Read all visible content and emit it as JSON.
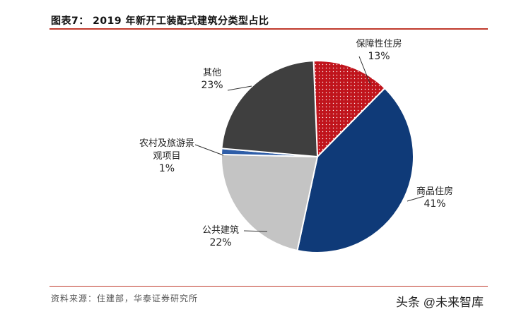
{
  "header": {
    "title": "图表7：  2019 年新开工装配式建筑分类型占比"
  },
  "footer": {
    "source": "资料来源：住建部，华泰证券研究所",
    "watermark": "头条 @未来智库"
  },
  "colors": {
    "rule": "#c0392b",
    "保障性住房": "#c0141c",
    "商品住房": "#0f3a78",
    "公共建筑": "#c4c4c4",
    "农村及旅游景观项目": "#2f5ea8",
    "其他": "#3f3f3f"
  },
  "chart_data": {
    "type": "pie",
    "title": "2019 年新开工装配式建筑分类型占比",
    "slices": [
      {
        "label": "保障性住房",
        "value": 13,
        "pct_text": "13%",
        "label_lines": [
          "保障性住房"
        ]
      },
      {
        "label": "商品住房",
        "value": 41,
        "pct_text": "41%",
        "label_lines": [
          "商品住房"
        ]
      },
      {
        "label": "公共建筑",
        "value": 22,
        "pct_text": "22%",
        "label_lines": [
          "公共建筑"
        ]
      },
      {
        "label": "农村及旅游景观项目",
        "value": 1,
        "pct_text": "1%",
        "label_lines": [
          "农村及旅游景",
          "观项目"
        ]
      },
      {
        "label": "其他",
        "value": 23,
        "pct_text": "23%",
        "label_lines": [
          "其他"
        ]
      }
    ]
  }
}
